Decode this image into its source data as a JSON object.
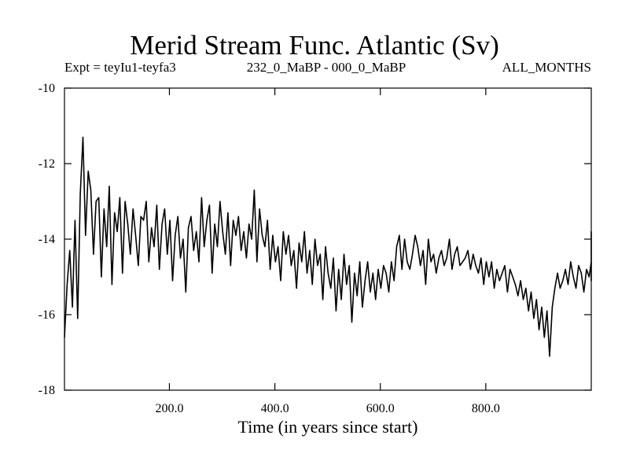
{
  "chart_data": {
    "type": "line",
    "title": "Merid Stream Func. Atlantic (Sv)",
    "subtitle_left": "Expt = teyIu1-teyfa3",
    "subtitle_center": "232_0_MaBP - 000_0_MaBP",
    "subtitle_right": "ALL_MONTHS",
    "xlabel": "Time (in years since start)",
    "ylabel": "",
    "xlim": [
      1,
      1000
    ],
    "ylim": [
      -18,
      -10
    ],
    "xticks": [
      200,
      400,
      600,
      800
    ],
    "xtick_labels": [
      "200.0",
      "400.0",
      "600.0",
      "800.0"
    ],
    "yticks": [
      -18,
      -16,
      -14,
      -12,
      -10
    ],
    "ytick_labels": [
      "-18",
      "-16",
      "-14",
      "-12",
      "-10"
    ],
    "grid": false,
    "series": [
      {
        "name": "Merid Stream Func. Atlantic",
        "color": "#000000",
        "x_start": 1,
        "x_step": 5,
        "values": [
          -16.6,
          -15.2,
          -14.3,
          -15.8,
          -13.5,
          -16.1,
          -12.8,
          -11.3,
          -13.9,
          -12.2,
          -12.7,
          -14.4,
          -13.0,
          -12.9,
          -15.0,
          -13.2,
          -14.2,
          -12.6,
          -15.2,
          -13.3,
          -13.8,
          -12.9,
          -14.9,
          -13.0,
          -13.6,
          -14.4,
          -13.2,
          -13.9,
          -14.7,
          -13.4,
          -13.5,
          -13.0,
          -14.6,
          -13.7,
          -14.2,
          -13.1,
          -14.8,
          -13.6,
          -13.2,
          -14.4,
          -13.5,
          -15.1,
          -13.9,
          -13.4,
          -14.5,
          -14.0,
          -15.4,
          -13.7,
          -13.4,
          -14.3,
          -13.8,
          -14.6,
          -12.9,
          -14.2,
          -13.5,
          -13.1,
          -14.9,
          -13.6,
          -14.2,
          -13.0,
          -13.8,
          -14.4,
          -13.3,
          -14.7,
          -13.5,
          -13.9,
          -13.4,
          -14.3,
          -13.8,
          -14.5,
          -13.6,
          -14.0,
          -12.7,
          -14.6,
          -13.2,
          -13.9,
          -14.2,
          -13.5,
          -14.8,
          -13.9,
          -14.6,
          -14.2,
          -15.1,
          -13.8,
          -14.4,
          -13.9,
          -14.7,
          -14.3,
          -15.3,
          -14.1,
          -14.6,
          -13.8,
          -14.9,
          -14.3,
          -15.2,
          -14.0,
          -14.7,
          -14.4,
          -15.6,
          -14.2,
          -14.9,
          -15.3,
          -14.5,
          -15.9,
          -14.8,
          -15.6,
          -14.4,
          -15.2,
          -14.7,
          -16.2,
          -14.9,
          -15.5,
          -14.6,
          -15.8,
          -15.1,
          -14.6,
          -15.4,
          -14.9,
          -15.6,
          -14.8,
          -15.3,
          -14.7,
          -14.9,
          -15.4,
          -14.6,
          -15.1,
          -14.2,
          -13.9,
          -14.8,
          -14.0,
          -14.6,
          -14.8,
          -14.4,
          -13.9,
          -14.2,
          -14.7,
          -14.3,
          -15.2,
          -14.0,
          -14.6,
          -14.4,
          -14.9,
          -14.5,
          -14.3,
          -14.7,
          -14.5,
          -14.0,
          -14.8,
          -14.4,
          -14.2,
          -14.7,
          -14.6,
          -14.5,
          -14.3,
          -14.8,
          -14.4,
          -14.7,
          -14.9,
          -14.5,
          -15.2,
          -14.6,
          -15.0,
          -14.6,
          -15.3,
          -14.8,
          -15.1,
          -14.9,
          -14.7,
          -15.4,
          -14.8,
          -15.0,
          -15.2,
          -15.5,
          -15.1,
          -15.6,
          -15.3,
          -15.9,
          -15.4,
          -16.1,
          -15.6,
          -16.4,
          -15.8,
          -16.6,
          -15.9,
          -17.1,
          -15.8,
          -15.3,
          -14.9,
          -15.3,
          -15.1,
          -14.8,
          -15.2,
          -14.6,
          -15.0,
          -15.3,
          -14.7,
          -14.9,
          -15.4,
          -14.8,
          -15.0,
          -14.6,
          -14.9,
          -15.1,
          -14.6,
          -14.2,
          -13.9,
          -14.5,
          -14.1,
          -14.7,
          -13.8,
          -14.3,
          -14.0,
          -14.4,
          -13.8
        ]
      }
    ]
  }
}
